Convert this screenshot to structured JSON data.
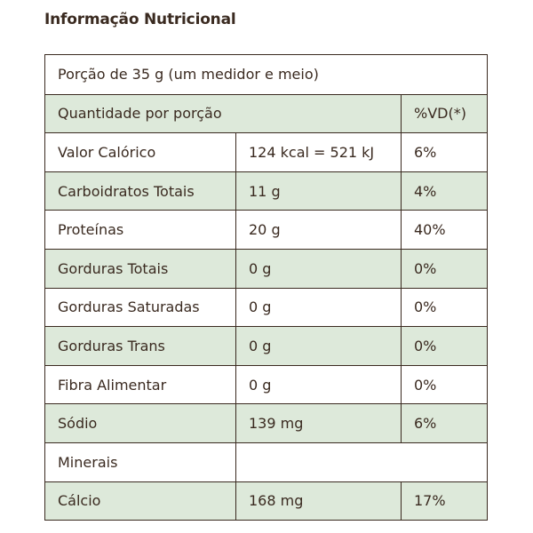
{
  "title": "Informação Nutricional",
  "portion": "Porção de 35 g (um medidor e meio)",
  "header": {
    "quantity_label": "Quantidade por porção",
    "vd_label": "%VD(*)"
  },
  "rows": [
    {
      "name": "Valor Calórico",
      "amount": "124 kcal = 521 kJ",
      "vd": "6%"
    },
    {
      "name": "Carboidratos Totais",
      "amount": "11 g",
      "vd": "4%"
    },
    {
      "name": "Proteínas",
      "amount": "20 g",
      "vd": "40%"
    },
    {
      "name": "Gorduras Totais",
      "amount": "0 g",
      "vd": "0%"
    },
    {
      "name": "Gorduras Saturadas",
      "amount": "0 g",
      "vd": "0%"
    },
    {
      "name": "Gorduras Trans",
      "amount": "0 g",
      "vd": "0%"
    },
    {
      "name": "Fibra Alimentar",
      "amount": "0 g",
      "vd": "0%"
    },
    {
      "name": "Sódio",
      "amount": "139 mg",
      "vd": "6%"
    }
  ],
  "minerals_label": "Minerais",
  "minerals": [
    {
      "name": "Cálcio",
      "amount": "168 mg",
      "vd": "17%"
    }
  ],
  "colors": {
    "shade": "#dde9da",
    "border": "#3a2a20",
    "text": "#3a2a20"
  }
}
